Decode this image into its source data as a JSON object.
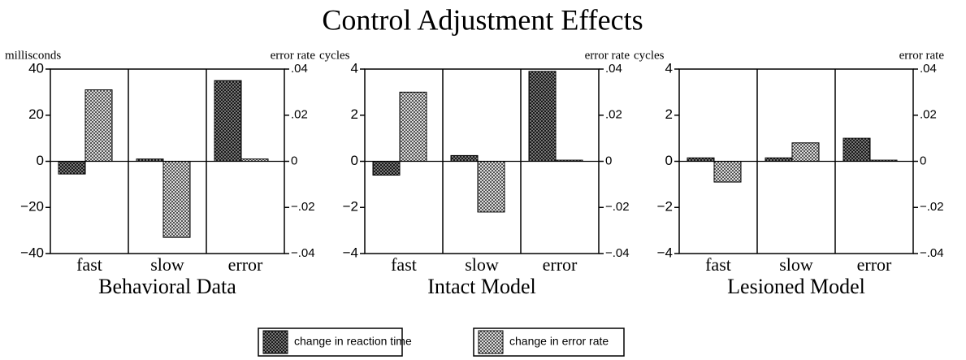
{
  "title": "Control Adjustment Effects",
  "chart_data": [
    {
      "type": "bar",
      "subtitle": "Behavioral Data",
      "ylabel": "millisconds",
      "y2label": "error rate",
      "categories": [
        "fast",
        "slow",
        "error"
      ],
      "ylim": [
        -40,
        40
      ],
      "yticks": [
        {
          "value": -40,
          "label": "−40"
        },
        {
          "value": -20,
          "label": "−20"
        },
        0,
        20,
        40
      ],
      "y2lim": [
        -0.04,
        0.04
      ],
      "y2ticks": [
        {
          "value": -0.04,
          "label": "−.04"
        },
        {
          "value": -0.02,
          "label": "−.02"
        },
        0,
        {
          "value": 0.02,
          "label": ".02"
        },
        {
          "value": 0.04,
          "label": ".04"
        }
      ],
      "series": [
        {
          "name": "change in reaction time",
          "color": "#1a1a1a",
          "values": [
            -5.5,
            1,
            35
          ]
        },
        {
          "name": "change in error rate",
          "color": "#333333",
          "axis": "y2",
          "values": [
            0.031,
            -0.033,
            0.001
          ]
        }
      ]
    },
    {
      "type": "bar",
      "subtitle": "Intact Model",
      "ylabel": "cycles",
      "y2label": "error rate",
      "categories": [
        "fast",
        "slow",
        "error"
      ],
      "ylim": [
        -4,
        4
      ],
      "yticks": [
        {
          "value": -4,
          "label": "−4"
        },
        {
          "value": -2,
          "label": "−2"
        },
        0,
        2,
        4
      ],
      "y2lim": [
        -0.04,
        0.04
      ],
      "y2ticks": [
        {
          "value": -0.04,
          "label": "−.04"
        },
        {
          "value": -0.02,
          "label": "−.02"
        },
        0,
        {
          "value": 0.02,
          "label": ".02"
        },
        {
          "value": 0.04,
          "label": ".04"
        }
      ],
      "series": [
        {
          "name": "change in reaction time",
          "color": "#1a1a1a",
          "values": [
            -0.6,
            0.25,
            3.9
          ]
        },
        {
          "name": "change in error rate",
          "color": "#333333",
          "axis": "y2",
          "values": [
            0.03,
            -0.022,
            0.0005
          ]
        }
      ]
    },
    {
      "type": "bar",
      "subtitle": "Lesioned Model",
      "ylabel": "cycles",
      "y2label": "error rate",
      "categories": [
        "fast",
        "slow",
        "error"
      ],
      "ylim": [
        -4,
        4
      ],
      "yticks": [
        {
          "value": -4,
          "label": "−4"
        },
        {
          "value": -2,
          "label": "−2"
        },
        0,
        2,
        4
      ],
      "y2lim": [
        -0.04,
        0.04
      ],
      "y2ticks": [
        {
          "value": -0.04,
          "label": "−.04"
        },
        {
          "value": -0.02,
          "label": "−.02"
        },
        0,
        {
          "value": 0.02,
          "label": ".02"
        },
        {
          "value": 0.04,
          "label": ".04"
        }
      ],
      "series": [
        {
          "name": "change in reaction time",
          "color": "#1a1a1a",
          "values": [
            0.15,
            0.15,
            1.0
          ]
        },
        {
          "name": "change in error rate",
          "color": "#333333",
          "axis": "y2",
          "values": [
            -0.009,
            0.008,
            0.0005
          ]
        }
      ]
    }
  ]
}
